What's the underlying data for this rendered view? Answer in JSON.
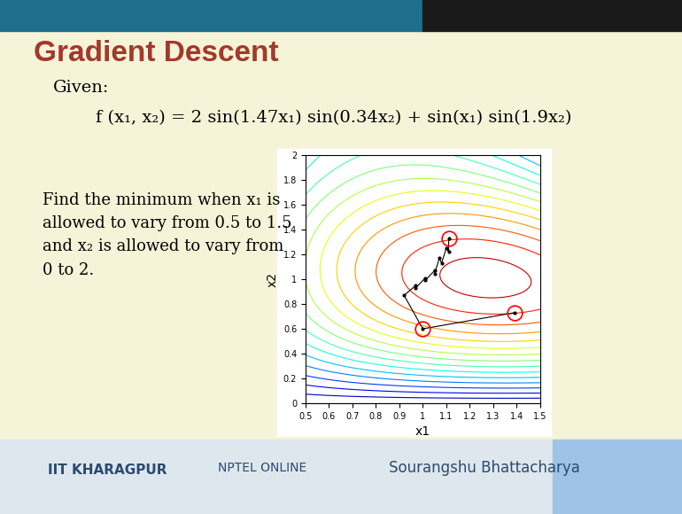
{
  "header": {
    "title": "Gradient Descent"
  },
  "given": {
    "label": "Given:",
    "formula": "f (x₁, x₂) = 2 sin(1.47x₁) sin(0.34x₂) + sin(x₁) sin(1.9x₂)",
    "terms": [
      {
        "a": 2,
        "b": 1.47,
        "c": 0.34
      },
      {
        "a": 1,
        "b": 1,
        "c": 1.9
      }
    ]
  },
  "task": {
    "lines": [
      "Find the minimum when x₁ is",
      "allowed to vary from 0.5 to 1.5",
      "and x₂ is allowed to vary from",
      "0 to 2."
    ]
  },
  "chart_data": {
    "type": "contour",
    "xlabel": "x1",
    "ylabel": "x2",
    "xlim": [
      0.5,
      1.5
    ],
    "ylim": [
      0,
      2
    ],
    "xticks": [
      0.5,
      0.6,
      0.7,
      0.8,
      0.9,
      1,
      1.1,
      1.2,
      1.3,
      1.4,
      1.5
    ],
    "yticks": [
      0,
      0.2,
      0.4,
      0.6,
      0.8,
      1,
      1.2,
      1.4,
      1.6,
      1.8,
      2
    ],
    "levels": [
      0.0,
      0.1,
      0.2,
      0.3,
      0.4,
      0.5,
      0.6,
      0.7,
      0.8,
      0.9,
      1.0,
      1.1,
      1.2,
      1.3,
      1.4,
      1.5,
      1.6
    ],
    "path": {
      "x": [
        1.39,
        1.0,
        0.92,
        0.97,
        0.97,
        1.01,
        1.01,
        1.05,
        1.05,
        1.07,
        1.08,
        1.1,
        1.11,
        1.11
      ],
      "y": [
        0.73,
        0.6,
        0.87,
        0.95,
        0.93,
        1.01,
        0.99,
        1.07,
        1.04,
        1.17,
        1.13,
        1.25,
        1.22,
        1.33
      ],
      "color": "#000000",
      "marker": "."
    }
  },
  "footer": {
    "texts": [
      "IIT KHARAGPUR",
      "NPTEL ONLINE",
      "Sourangshu Bhattacharya"
    ]
  }
}
